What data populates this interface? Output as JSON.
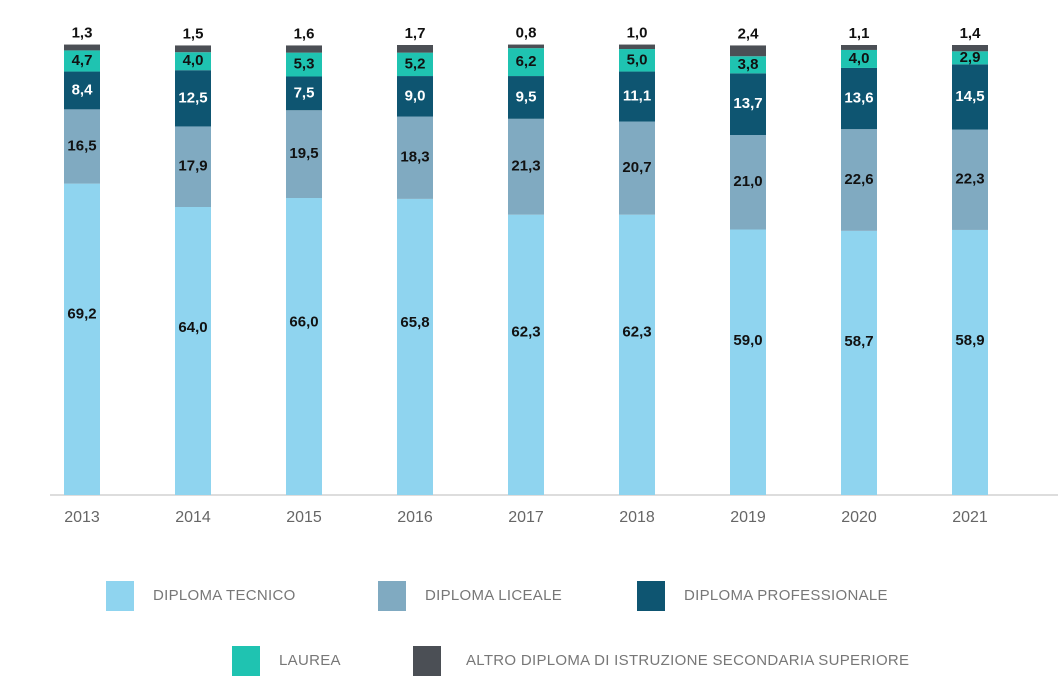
{
  "chart_data": {
    "type": "stacked_bar",
    "categories": [
      "2013",
      "2014",
      "2015",
      "2016",
      "2017",
      "2018",
      "2019",
      "2020",
      "2021"
    ],
    "series": [
      {
        "name": "DIPLOMA TECNICO",
        "color": "#8fd4ef",
        "values": [
          69.2,
          64.0,
          66.0,
          65.8,
          62.3,
          62.3,
          59.0,
          58.7,
          58.9
        ],
        "value_labels": [
          "69,2",
          "64,0",
          "66,0",
          "65,8",
          "62,3",
          "62,3",
          "59,0",
          "58,7",
          "58,9"
        ]
      },
      {
        "name": "DIPLOMA LICEALE",
        "color": "#80aac1",
        "values": [
          16.5,
          17.9,
          19.5,
          18.3,
          21.3,
          20.7,
          21.0,
          22.6,
          22.3
        ],
        "value_labels": [
          "16,5",
          "17,9",
          "19,5",
          "18,3",
          "21,3",
          "20,7",
          "21,0",
          "22,6",
          "22,3"
        ]
      },
      {
        "name": "DIPLOMA PROFESSIONALE",
        "color": "#0e5571",
        "values": [
          8.4,
          12.5,
          7.5,
          9.0,
          9.5,
          11.1,
          13.7,
          13.6,
          14.5
        ],
        "value_labels": [
          "8,4",
          "12,5",
          "7,5",
          "9,0",
          "9,5",
          "11,1",
          "13,7",
          "13,6",
          "14,5"
        ]
      },
      {
        "name": "LAUREA",
        "color": "#1fc3b1",
        "values": [
          4.7,
          4.0,
          5.3,
          5.2,
          6.2,
          5.0,
          3.8,
          4.0,
          2.9
        ],
        "value_labels": [
          "4,7",
          "4,0",
          "5,3",
          "5,2",
          "6,2",
          "5,0",
          "3,8",
          "4,0",
          "2,9"
        ]
      },
      {
        "name": "ALTRO DIPLOMA DI ISTRUZIONE SECONDARIA SUPERIORE",
        "color": "#4b4f55",
        "values": [
          1.3,
          1.5,
          1.6,
          1.7,
          0.8,
          1.0,
          2.4,
          1.1,
          1.4
        ],
        "value_labels": [
          "1,3",
          "1,5",
          "1,6",
          "1,7",
          "0,8",
          "1,0",
          "2,4",
          "1,1",
          "1,4"
        ]
      }
    ]
  }
}
